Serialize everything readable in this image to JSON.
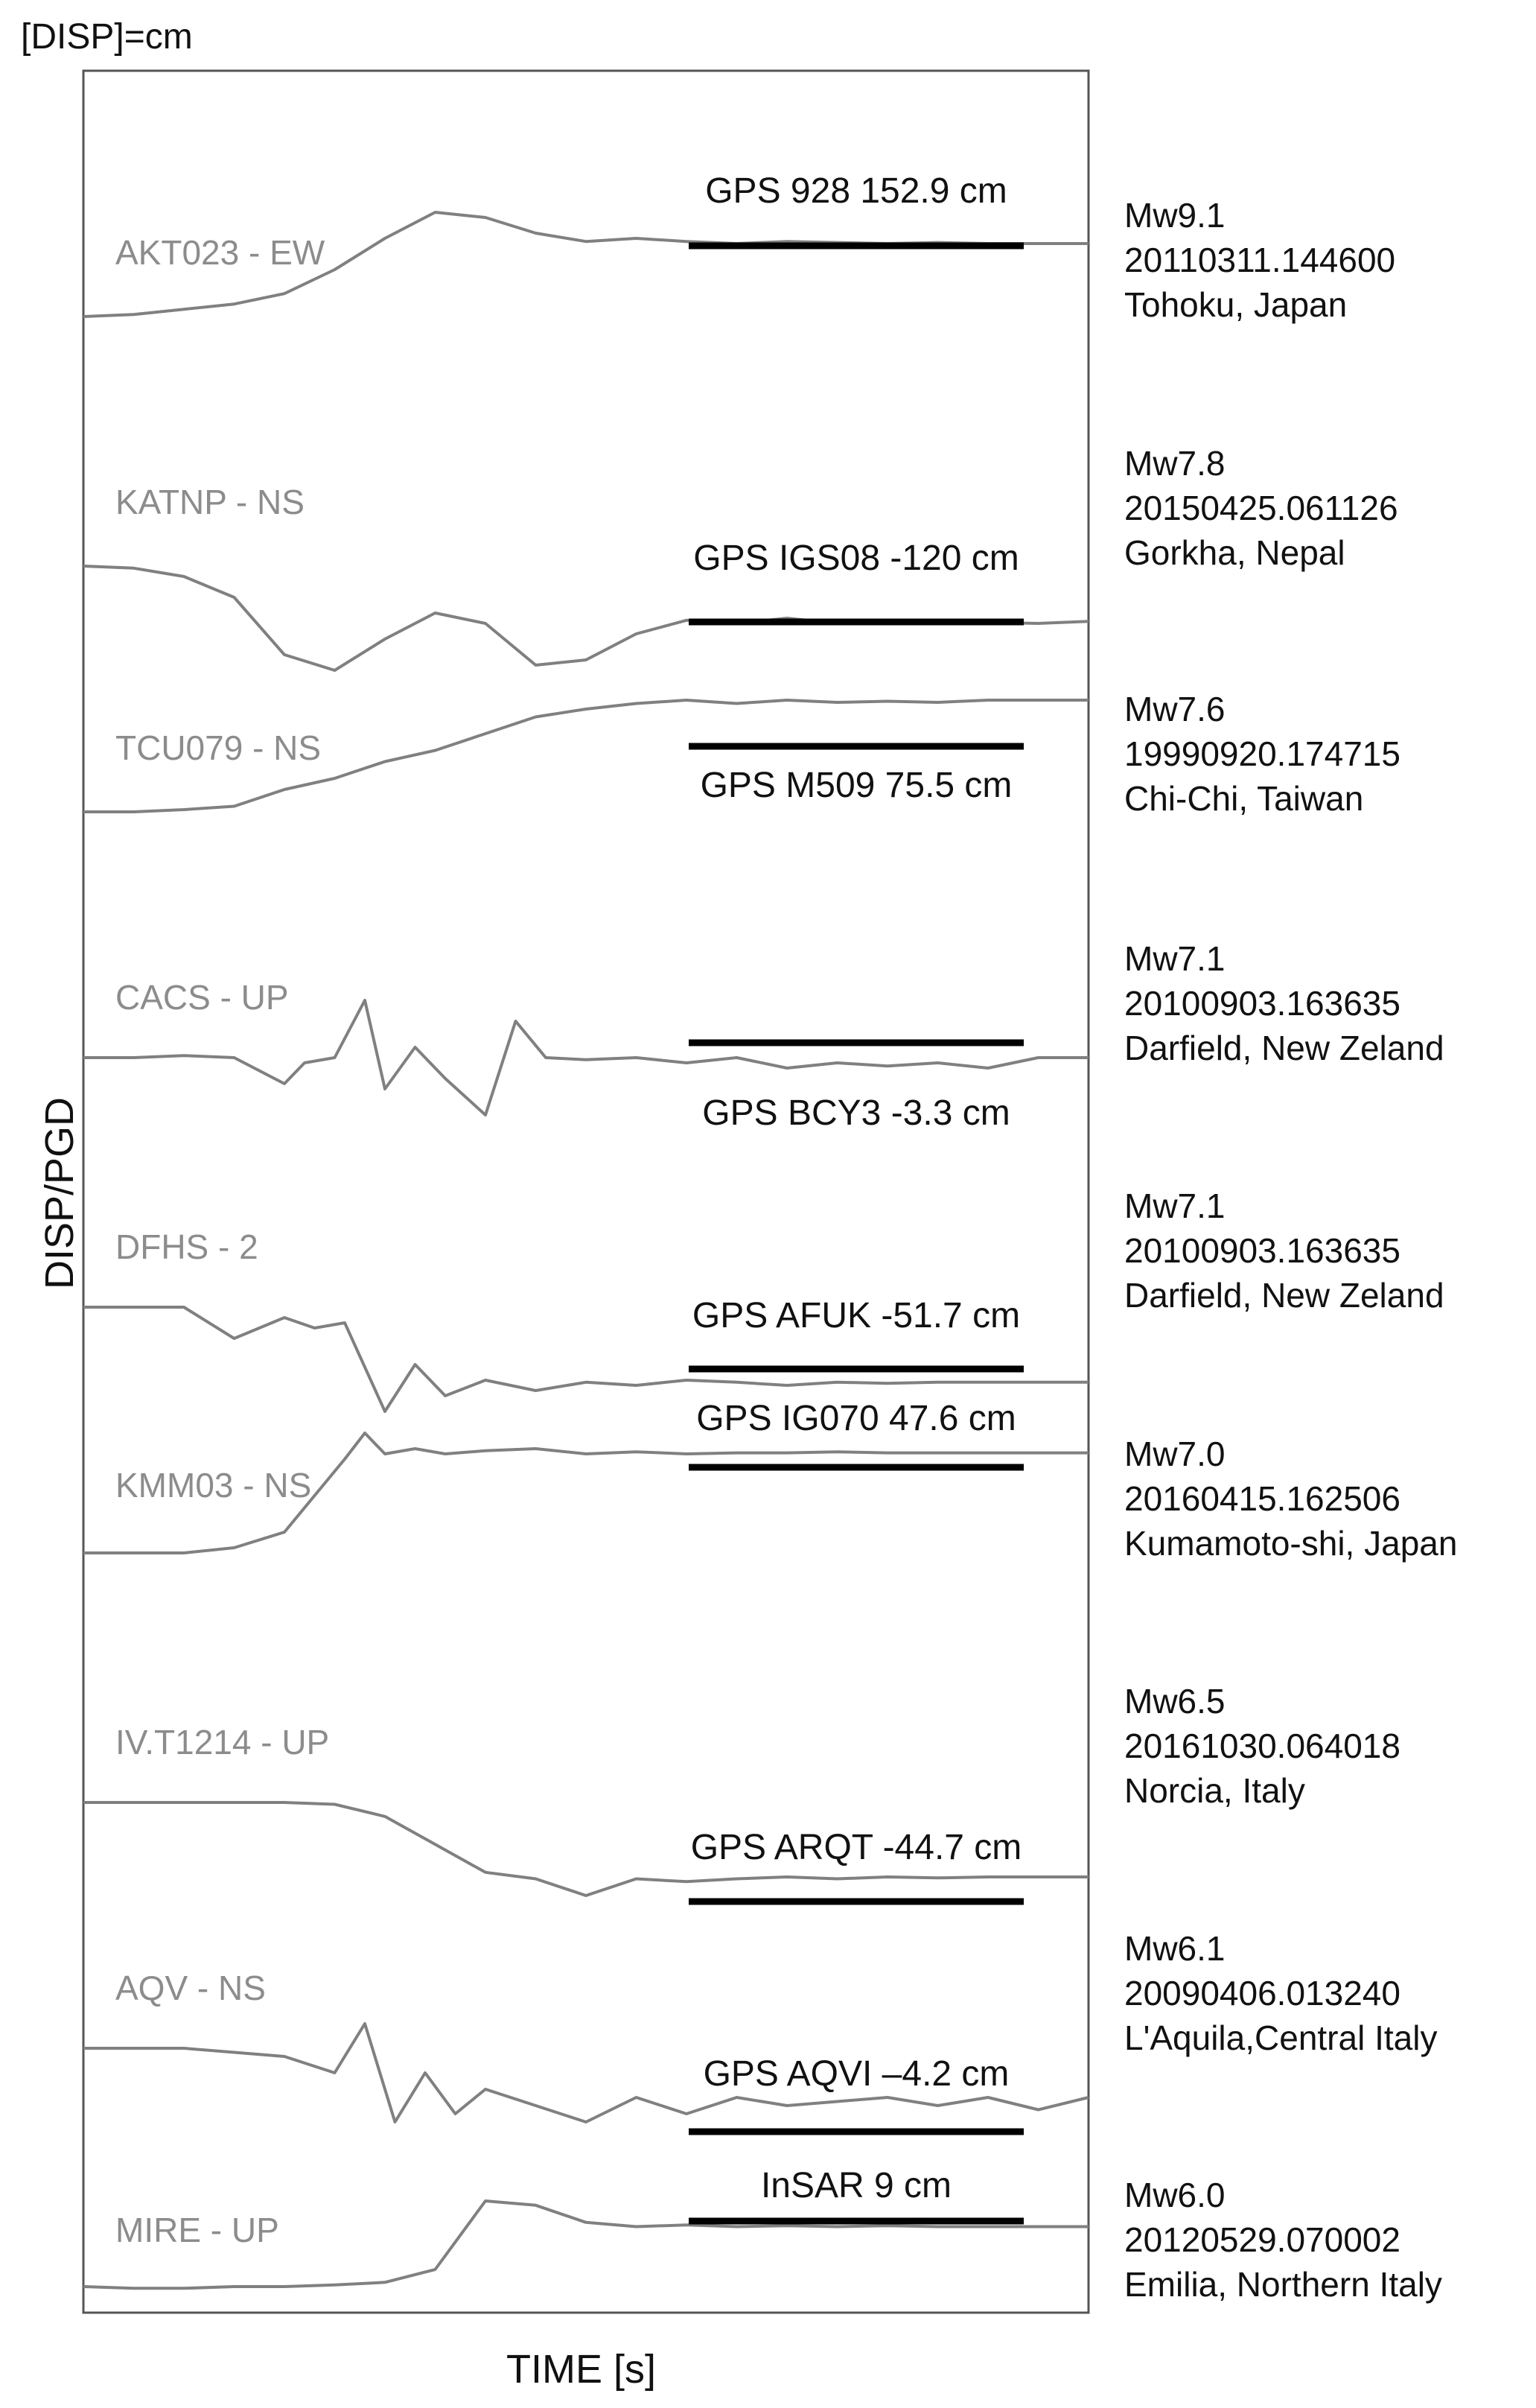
{
  "chart_data": {
    "type": "line",
    "unit_label": "[DISP]=cm",
    "xlabel": "TIME [s]",
    "ylabel": "DISP/PGD",
    "colors": {
      "trace": "#808080",
      "trace_label": "#8c8c8c",
      "reference_bar": "#000000",
      "text": "#111111"
    },
    "series": [
      {
        "name": "AKT023 - EW",
        "event": {
          "magnitude": "Mw9.1",
          "origin": "20110311.144600",
          "place": "Tohoku, Japan"
        },
        "reference": "GPS 928 152.9 cm",
        "x": [
          0,
          0.05,
          0.1,
          0.15,
          0.2,
          0.25,
          0.3,
          0.35,
          0.4,
          0.45,
          0.5,
          0.55,
          0.6,
          0.65,
          0.7,
          0.75,
          0.8,
          0.85,
          0.9,
          0.95,
          1.0
        ],
        "y": [
          0.0,
          0.02,
          0.07,
          0.12,
          0.22,
          0.45,
          0.75,
          1.0,
          0.95,
          0.8,
          0.72,
          0.75,
          0.72,
          0.7,
          0.72,
          0.71,
          0.7,
          0.71,
          0.7,
          0.7,
          0.7
        ]
      },
      {
        "name": "KATNP - NS",
        "event": {
          "magnitude": "Mw7.8",
          "origin": "20150425.061126",
          "place": "Gorkha, Nepal"
        },
        "reference": "GPS IGS08 -120 cm",
        "x": [
          0,
          0.05,
          0.1,
          0.15,
          0.2,
          0.25,
          0.3,
          0.35,
          0.4,
          0.45,
          0.5,
          0.55,
          0.6,
          0.65,
          0.7,
          0.75,
          0.8,
          0.85,
          0.9,
          0.95,
          1.0
        ],
        "y": [
          0.0,
          -0.02,
          -0.1,
          -0.3,
          -0.85,
          -1.0,
          -0.7,
          -0.45,
          -0.55,
          -0.95,
          -0.9,
          -0.65,
          -0.52,
          -0.55,
          -0.5,
          -0.55,
          -0.52,
          -0.55,
          -0.54,
          -0.55,
          -0.53
        ]
      },
      {
        "name": "TCU079 - NS",
        "event": {
          "magnitude": "Mw7.6",
          "origin": "19990920.174715",
          "place": "Chi-Chi, Taiwan"
        },
        "reference": "GPS M509 75.5 cm",
        "x": [
          0,
          0.05,
          0.1,
          0.15,
          0.2,
          0.25,
          0.3,
          0.35,
          0.4,
          0.45,
          0.5,
          0.55,
          0.6,
          0.65,
          0.7,
          0.75,
          0.8,
          0.85,
          0.9,
          0.95,
          1.0
        ],
        "y": [
          0.0,
          0.0,
          0.02,
          0.05,
          0.2,
          0.3,
          0.45,
          0.55,
          0.7,
          0.85,
          0.92,
          0.97,
          1.0,
          0.97,
          1.0,
          0.98,
          0.99,
          0.98,
          1.0,
          1.0,
          1.0
        ]
      },
      {
        "name": "CACS - UP",
        "event": {
          "magnitude": "Mw7.1",
          "origin": "20100903.163635",
          "place": "Darfield, New Zeland"
        },
        "reference": "GPS BCY3 -3.3 cm",
        "x": [
          0,
          0.05,
          0.1,
          0.15,
          0.2,
          0.22,
          0.25,
          0.28,
          0.3,
          0.33,
          0.36,
          0.4,
          0.43,
          0.46,
          0.5,
          0.55,
          0.6,
          0.65,
          0.7,
          0.75,
          0.8,
          0.85,
          0.9,
          0.95,
          1.0
        ],
        "y": [
          0.0,
          0.0,
          0.02,
          0.0,
          -0.25,
          -0.05,
          0.0,
          0.55,
          -0.3,
          0.1,
          -0.2,
          -0.55,
          0.35,
          0.0,
          -0.02,
          0.0,
          -0.05,
          0.0,
          -0.1,
          -0.05,
          -0.08,
          -0.05,
          -0.1,
          0.0,
          0.0
        ]
      },
      {
        "name": "DFHS - 2",
        "event": {
          "magnitude": "Mw7.1",
          "origin": "20100903.163635",
          "place": "Darfield, New Zeland"
        },
        "reference": "GPS AFUK -51.7 cm",
        "x": [
          0,
          0.05,
          0.1,
          0.15,
          0.2,
          0.23,
          0.26,
          0.3,
          0.33,
          0.36,
          0.4,
          0.45,
          0.5,
          0.55,
          0.6,
          0.65,
          0.7,
          0.75,
          0.8,
          0.85,
          0.9,
          0.95,
          1.0
        ],
        "y": [
          0.0,
          0.0,
          0.0,
          -0.3,
          -0.1,
          -0.2,
          -0.15,
          -1.0,
          -0.55,
          -0.85,
          -0.7,
          -0.8,
          -0.72,
          -0.75,
          -0.7,
          -0.72,
          -0.75,
          -0.72,
          -0.73,
          -0.72,
          -0.72,
          -0.72,
          -0.72
        ]
      },
      {
        "name": "KMM03 - NS",
        "event": {
          "magnitude": "Mw7.0",
          "origin": "20160415.162506",
          "place": "Kumamoto-shi, Japan"
        },
        "reference": "GPS IG070 47.6 cm",
        "x": [
          0,
          0.05,
          0.1,
          0.15,
          0.2,
          0.23,
          0.26,
          0.28,
          0.3,
          0.33,
          0.36,
          0.4,
          0.45,
          0.5,
          0.55,
          0.6,
          0.65,
          0.7,
          0.75,
          0.8,
          0.85,
          0.9,
          0.95,
          1.0
        ],
        "y": [
          0.0,
          0.0,
          0.0,
          0.05,
          0.2,
          0.55,
          0.9,
          1.15,
          0.95,
          1.0,
          0.95,
          0.98,
          1.0,
          0.95,
          0.97,
          0.95,
          0.96,
          0.96,
          0.97,
          0.96,
          0.96,
          0.96,
          0.96,
          0.96
        ]
      },
      {
        "name": "IV.T1214 - UP",
        "event": {
          "magnitude": "Mw6.5",
          "origin": "20161030.064018",
          "place": "Norcia, Italy"
        },
        "reference": "GPS ARQT -44.7 cm",
        "x": [
          0,
          0.05,
          0.1,
          0.15,
          0.2,
          0.25,
          0.3,
          0.35,
          0.4,
          0.45,
          0.5,
          0.55,
          0.6,
          0.65,
          0.7,
          0.75,
          0.8,
          0.85,
          0.9,
          0.95,
          1.0
        ],
        "y": [
          0.0,
          0.0,
          0.0,
          0.0,
          0.0,
          -0.02,
          -0.15,
          -0.45,
          -0.75,
          -0.82,
          -1.0,
          -0.82,
          -0.85,
          -0.82,
          -0.8,
          -0.82,
          -0.8,
          -0.81,
          -0.8,
          -0.8,
          -0.8
        ]
      },
      {
        "name": "AQV - NS",
        "event": {
          "magnitude": "Mw6.1",
          "origin": "20090406.013240",
          "place": "L'Aquila,Central Italy"
        },
        "reference": "GPS AQVI –4.2 cm",
        "x": [
          0,
          0.05,
          0.1,
          0.15,
          0.2,
          0.25,
          0.28,
          0.31,
          0.34,
          0.37,
          0.4,
          0.45,
          0.5,
          0.55,
          0.6,
          0.65,
          0.7,
          0.75,
          0.8,
          0.85,
          0.9,
          0.95,
          1.0
        ],
        "y": [
          0.0,
          0.0,
          0.0,
          -0.05,
          -0.1,
          -0.3,
          0.3,
          -0.9,
          -0.3,
          -0.8,
          -0.5,
          -0.7,
          -0.9,
          -0.6,
          -0.8,
          -0.6,
          -0.7,
          -0.65,
          -0.6,
          -0.7,
          -0.6,
          -0.75,
          -0.6
        ]
      },
      {
        "name": "MIRE - UP",
        "event": {
          "magnitude": "Mw6.0",
          "origin": "20120529.070002",
          "place": "Emilia, Northern Italy"
        },
        "reference": "InSAR 9 cm",
        "x": [
          0,
          0.05,
          0.1,
          0.15,
          0.2,
          0.25,
          0.3,
          0.35,
          0.4,
          0.45,
          0.5,
          0.55,
          0.6,
          0.65,
          0.7,
          0.75,
          0.8,
          0.85,
          0.9,
          0.95,
          1.0
        ],
        "y": [
          0.0,
          -0.02,
          -0.02,
          0.0,
          0.0,
          0.02,
          0.05,
          0.2,
          1.0,
          0.95,
          0.75,
          0.7,
          0.72,
          0.7,
          0.71,
          0.7,
          0.71,
          0.7,
          0.7,
          0.7,
          0.7
        ]
      }
    ]
  }
}
